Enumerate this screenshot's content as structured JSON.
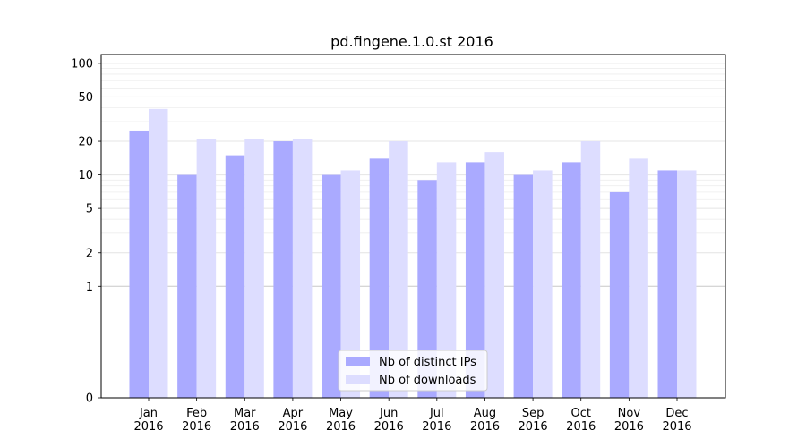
{
  "chart_data": {
    "type": "bar",
    "title": "pd.fingene.1.0.st 2016",
    "xlabel": "",
    "ylabel": "",
    "y_scale": "symlog",
    "ylim": [
      0,
      120
    ],
    "yticks": [
      0,
      1,
      2,
      5,
      10,
      20,
      50,
      100
    ],
    "grid": true,
    "legend_position": "bottom-center",
    "categories": [
      "Jan\n2016",
      "Feb\n2016",
      "Mar\n2016",
      "Apr\n2016",
      "May\n2016",
      "Jun\n2016",
      "Jul\n2016",
      "Aug\n2016",
      "Sep\n2016",
      "Oct\n2016",
      "Nov\n2016",
      "Dec\n2016"
    ],
    "series": [
      {
        "name": "Nb of distinct IPs",
        "color": "#aaaaff",
        "values": [
          25,
          10,
          15,
          20,
          10,
          14,
          9,
          13,
          10,
          13,
          7,
          11
        ]
      },
      {
        "name": "Nb of downloads",
        "color": "#ddddff",
        "values": [
          39,
          21,
          21,
          21,
          11,
          20,
          13,
          16,
          11,
          20,
          14,
          11
        ]
      }
    ]
  }
}
